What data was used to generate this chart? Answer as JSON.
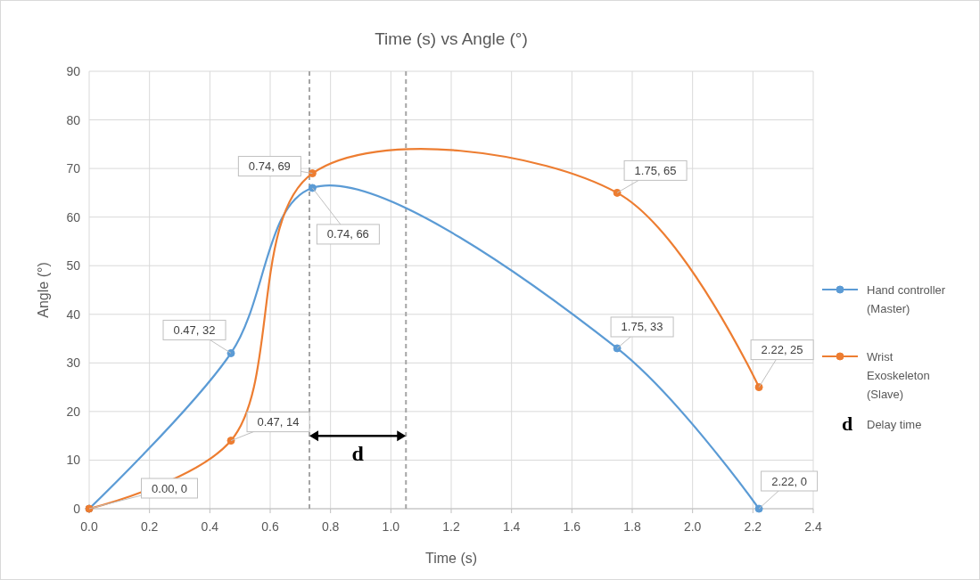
{
  "chart_data": {
    "type": "line",
    "title": "Time (s) vs Angle (°)",
    "xlabel": "Time (s)",
    "ylabel": "Angle (°)",
    "xlim": [
      0,
      2.4
    ],
    "xticks": [
      {
        "value": 0,
        "label": "0.0"
      },
      0.2,
      0.4,
      0.6,
      0.8,
      {
        "value": 1,
        "label": "1.0"
      },
      1.2,
      1.4,
      1.6,
      1.8,
      {
        "value": 2,
        "label": "2.0"
      },
      2.2,
      2.4
    ],
    "ylim": [
      0,
      90
    ],
    "yticks": [
      0,
      10,
      20,
      30,
      40,
      50,
      60,
      70,
      80,
      90
    ],
    "grid": true,
    "legend": "right",
    "marker": "circle",
    "line_style": "solid",
    "series": [
      {
        "name": "Hand controller (Master)",
        "color": "#5b9bd5",
        "x": [
          0,
          0.47,
          0.74,
          1.75,
          2.22
        ],
        "values": [
          0,
          32,
          66,
          33,
          0
        ],
        "value_labels": [
          null,
          "0.47, 32",
          "0.74, 66",
          "1.75, 33",
          "2.22, 0"
        ]
      },
      {
        "name": "Wrist Exoskeleton (Slave)",
        "color": "#ed7d31",
        "x": [
          0,
          0.47,
          0.74,
          1.75,
          2.22
        ],
        "values": [
          0,
          14,
          69,
          65,
          25
        ],
        "value_labels": [
          "0.00, 0",
          "0.47, 14",
          "0.74, 69",
          "1.75, 65",
          "2.22, 25"
        ]
      }
    ],
    "ref_lines": [
      {
        "axis": "x",
        "value": 0.73,
        "color": "#a5a5a5",
        "line_style": "dashed"
      },
      {
        "axis": "x",
        "value": 1.05,
        "color": "#a5a5a5",
        "line_style": "dashed"
      }
    ],
    "annotations": [
      "d",
      "Delay time"
    ]
  }
}
